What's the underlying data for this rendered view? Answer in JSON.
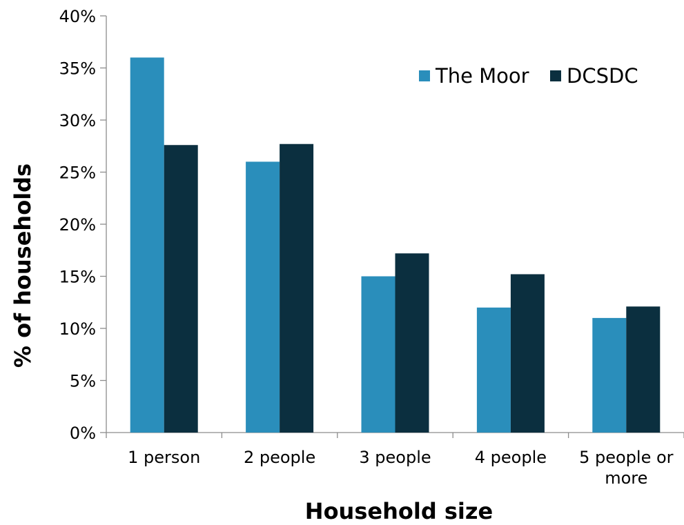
{
  "chart_data": {
    "type": "bar",
    "title": "",
    "xlabel": "Household size",
    "ylabel": "% of households",
    "categories": [
      "1 person",
      "2 people",
      "3 people",
      "4 people",
      "5 people or more"
    ],
    "category_lines": [
      [
        "1 person"
      ],
      [
        "2 people"
      ],
      [
        "3 people"
      ],
      [
        "4 people"
      ],
      [
        "5 people or",
        "more"
      ]
    ],
    "series": [
      {
        "name": "The Moor",
        "values": [
          36,
          26,
          15,
          12,
          11
        ],
        "color": "#2a8ebb"
      },
      {
        "name": "DCSDC",
        "values": [
          27.6,
          27.7,
          17.2,
          15.2,
          12.1
        ],
        "color": "#0b2f3f"
      }
    ],
    "ylim": [
      0,
      40
    ],
    "yticks": [
      0,
      5,
      10,
      15,
      20,
      25,
      30,
      35,
      40
    ],
    "ytick_labels": [
      "0%",
      "5%",
      "10%",
      "15%",
      "20%",
      "25%",
      "30%",
      "35%",
      "40%"
    ],
    "grid": false,
    "legend_position": "top-right"
  }
}
